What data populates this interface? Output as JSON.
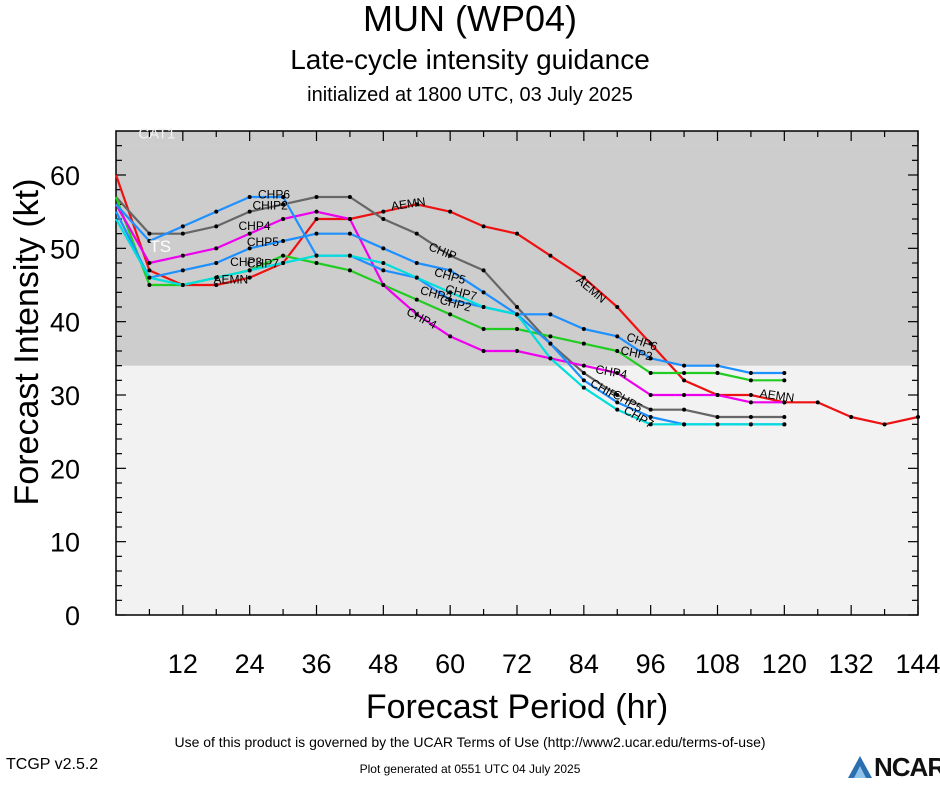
{
  "header": {
    "title": "MUN (WP04)",
    "subtitle": "Late-cycle intensity guidance",
    "init": "initialized at 1800 UTC, 03 July 2025"
  },
  "footer": {
    "terms": "Use of this product is governed by the UCAR Terms of Use (http://www2.ucar.edu/terms-of-use)",
    "generated": "Plot generated at 0551 UTC   04 July 2025",
    "version": "TCGP v2.5.2",
    "logo": "NCAR"
  },
  "chart_data": {
    "type": "line",
    "xlabel": "Forecast Period (hr)",
    "ylabel": "Forecast Intensity (kt)",
    "xlim": [
      0,
      144
    ],
    "ylim": [
      0,
      66
    ],
    "xticks": [
      12,
      24,
      36,
      48,
      60,
      72,
      84,
      96,
      108,
      120,
      132,
      144
    ],
    "yticks": [
      0,
      10,
      20,
      30,
      40,
      50,
      60
    ],
    "bands": [
      {
        "label": "TS",
        "from": 34,
        "to": 64,
        "color": "#cdcdcd"
      },
      {
        "label": "CAT1",
        "from": 64,
        "to": 66,
        "color": "#cdcdcd"
      }
    ],
    "series": [
      {
        "name": "AEMN",
        "color": "#ee1111",
        "x": [
          0,
          6,
          12,
          18,
          24,
          30,
          36,
          42,
          48,
          54,
          60,
          66,
          72,
          78,
          84,
          90,
          96,
          102,
          108,
          114,
          120,
          126,
          132,
          138,
          144
        ],
        "y": [
          60,
          47,
          45,
          45,
          46,
          48,
          54,
          54,
          55,
          56,
          55,
          53,
          52,
          49,
          46,
          42,
          37,
          32,
          30,
          30,
          29,
          29,
          27,
          26,
          27
        ]
      },
      {
        "name": "CHIP",
        "color": "#666666",
        "x": [
          0,
          6,
          12,
          18,
          24,
          30,
          36,
          42,
          48,
          54,
          60,
          66,
          72,
          78,
          84,
          90,
          96,
          102,
          108,
          114,
          120
        ],
        "y": [
          57,
          52,
          52,
          53,
          55,
          56,
          57,
          57,
          54,
          52,
          49,
          47,
          42,
          37,
          33,
          30,
          28,
          28,
          27,
          27,
          27
        ]
      },
      {
        "name": "CHP2",
        "color": "#22cc22",
        "x": [
          0,
          6,
          12,
          18,
          24,
          30,
          36,
          42,
          48,
          54,
          60,
          66,
          72,
          78,
          84,
          90,
          96,
          102,
          108,
          114,
          120
        ],
        "y": [
          57,
          45,
          45,
          46,
          47,
          49,
          48,
          47,
          45,
          43,
          41,
          39,
          39,
          38,
          37,
          36,
          33,
          33,
          33,
          32,
          32
        ]
      },
      {
        "name": "CHP4",
        "color": "#ee00ee",
        "x": [
          0,
          6,
          12,
          18,
          24,
          30,
          36,
          42,
          48,
          54,
          60,
          66,
          72,
          78,
          84,
          90,
          96,
          102,
          108,
          114,
          120
        ],
        "y": [
          56,
          48,
          49,
          50,
          52,
          54,
          55,
          54,
          45,
          41,
          38,
          36,
          36,
          35,
          34,
          33,
          30,
          30,
          30,
          29,
          29
        ]
      },
      {
        "name": "CHP5",
        "color": "#1e90ff",
        "x": [
          0,
          6,
          12,
          18,
          24,
          30,
          36,
          42,
          48,
          54,
          60,
          66,
          72,
          78,
          84,
          90,
          96,
          102,
          108,
          114,
          120
        ],
        "y": [
          55,
          46,
          47,
          48,
          50,
          51,
          52,
          52,
          50,
          48,
          47,
          44,
          41,
          37,
          32,
          29,
          27,
          26,
          26,
          26,
          26
        ]
      },
      {
        "name": "CHP6",
        "color": "#1e90ff",
        "x": [
          0,
          6,
          12,
          18,
          24,
          30,
          36,
          42,
          48,
          54,
          60,
          66,
          72,
          78,
          84,
          90,
          96,
          102,
          108,
          114,
          120
        ],
        "y": [
          56,
          51,
          53,
          55,
          57,
          57,
          49,
          49,
          47,
          46,
          43,
          42,
          41,
          41,
          39,
          38,
          35,
          34,
          34,
          33,
          33
        ]
      },
      {
        "name": "CHP7",
        "color": "#00dddd",
        "x": [
          0,
          6,
          12,
          18,
          24,
          30,
          36,
          42,
          48,
          54,
          60,
          66,
          72,
          78,
          84,
          90,
          96,
          102,
          108,
          114,
          120
        ],
        "y": [
          54,
          46,
          45,
          46,
          47,
          48,
          49,
          49,
          48,
          46,
          44,
          42,
          41,
          35,
          31,
          28,
          26,
          26,
          26,
          26,
          26
        ]
      }
    ],
    "labels": [
      {
        "text": "CAT1",
        "x": 4,
        "y": 65,
        "color": "#f2f2f2",
        "size": 15
      },
      {
        "text": "TS",
        "x": 6,
        "y": 49.5,
        "color": "#ffffff",
        "size": 17
      },
      {
        "text": "CHP6",
        "x": 25.5,
        "y": 56.8
      },
      {
        "text": "CHIP2",
        "x": 24.5,
        "y": 55.3
      },
      {
        "text": "CHP4",
        "x": 22,
        "y": 52.5
      },
      {
        "text": "CHP5",
        "x": 23.5,
        "y": 50.3
      },
      {
        "text": "CHP3",
        "x": 20.5,
        "y": 47.6
      },
      {
        "text": "CHP7",
        "x": 23.5,
        "y": 47.4
      },
      {
        "text": "AEMN",
        "x": 17.5,
        "y": 45.2
      },
      {
        "text": "AEMN",
        "x": 49.5,
        "y": 55.2,
        "angle": -8
      },
      {
        "text": "CHIP",
        "x": 56,
        "y": 49.8,
        "angle": 22
      },
      {
        "text": "CHP5",
        "x": 57,
        "y": 46.3,
        "angle": 16
      },
      {
        "text": "CHP2",
        "x": 54.5,
        "y": 43.8,
        "angle": 15
      },
      {
        "text": "CHP7",
        "x": 59,
        "y": 44.0,
        "angle": 15
      },
      {
        "text": "CHP2",
        "x": 58,
        "y": 42.5,
        "angle": 15
      },
      {
        "text": "CHP4",
        "x": 52,
        "y": 41.0,
        "angle": 28
      },
      {
        "text": "AEMN",
        "x": 82.5,
        "y": 45.5,
        "angle": 40
      },
      {
        "text": "CHP6",
        "x": 91.5,
        "y": 37.5,
        "angle": 20
      },
      {
        "text": "CHP2",
        "x": 90.5,
        "y": 35.6,
        "angle": 12
      },
      {
        "text": "CHP4",
        "x": 86,
        "y": 33.0,
        "angle": 10
      },
      {
        "text": "CHIP",
        "x": 85,
        "y": 31.3,
        "angle": 30
      },
      {
        "text": "CHP5",
        "x": 89,
        "y": 29.8,
        "angle": 30
      },
      {
        "text": "CHP7",
        "x": 91,
        "y": 27.6,
        "angle": 30
      },
      {
        "text": "AEMN",
        "x": 115.5,
        "y": 29.7,
        "angle": 8
      }
    ]
  }
}
